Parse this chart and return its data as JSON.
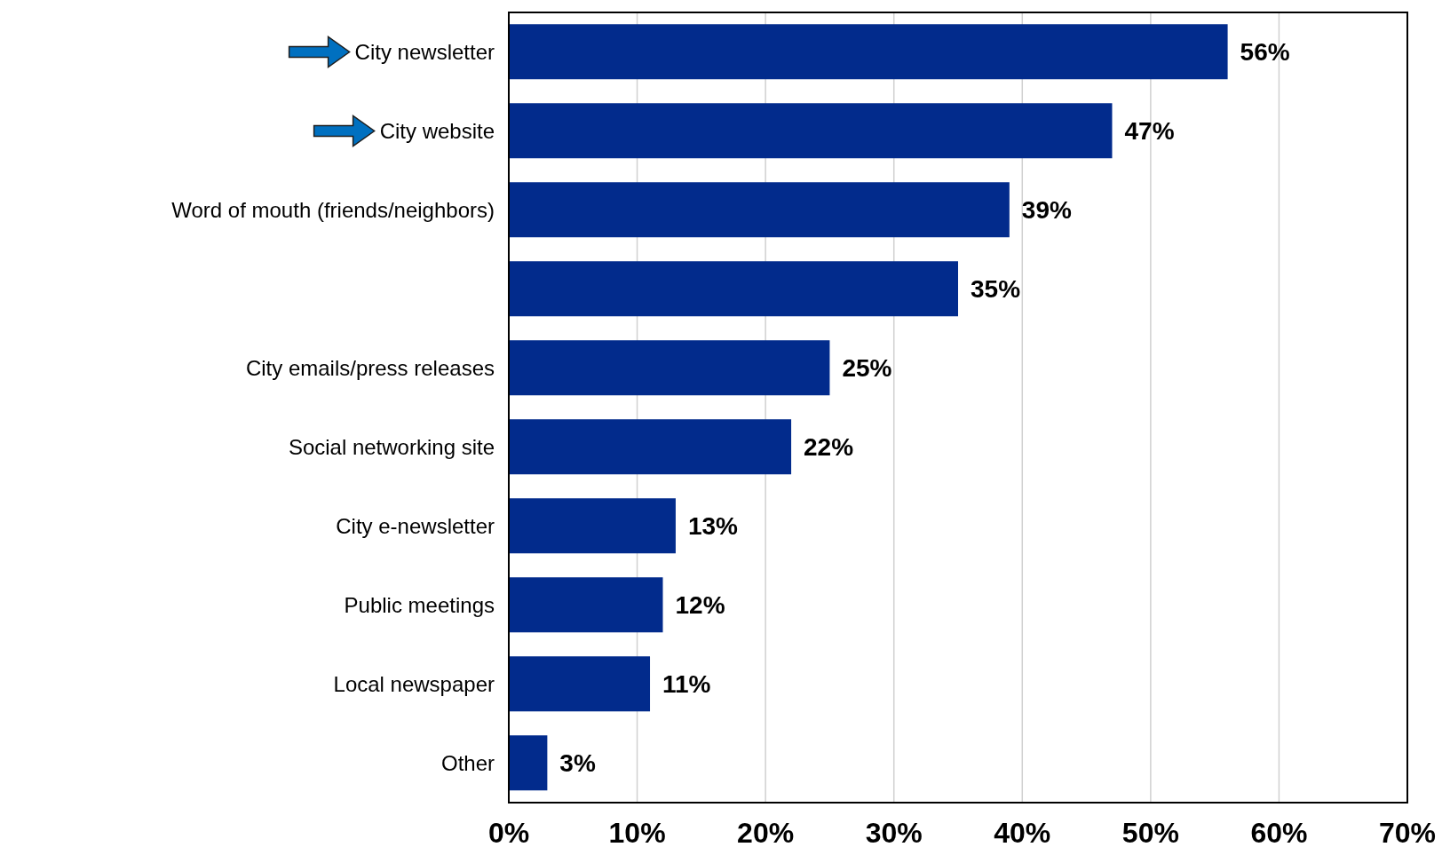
{
  "chart_data": {
    "type": "bar",
    "orientation": "horizontal",
    "categories": [
      "City newsletter",
      "City website",
      "Word of mouth (friends/neighbors)",
      null,
      "City emails/press releases",
      "Social networking site",
      "City e-newsletter",
      "Public meetings",
      "Local newspaper",
      "Other"
    ],
    "values": [
      56,
      47,
      39,
      35,
      25,
      22,
      13,
      12,
      11,
      3
    ],
    "value_labels": [
      "56%",
      "47%",
      "39%",
      "35%",
      "25%",
      "22%",
      "13%",
      "12%",
      "11%",
      "3%"
    ],
    "color": "#022b8c",
    "xlim": [
      0,
      70
    ],
    "xticks": [
      {
        "value": 0,
        "label": "0%"
      },
      {
        "value": 10,
        "label": "10%"
      },
      {
        "value": 20,
        "label": "20%"
      },
      {
        "value": 30,
        "label": "30%"
      },
      {
        "value": 40,
        "label": "40%"
      },
      {
        "value": 50,
        "label": "50%"
      },
      {
        "value": 60,
        "label": "60%"
      },
      {
        "value": 70,
        "label": "70%"
      }
    ],
    "grid": "x"
  }
}
